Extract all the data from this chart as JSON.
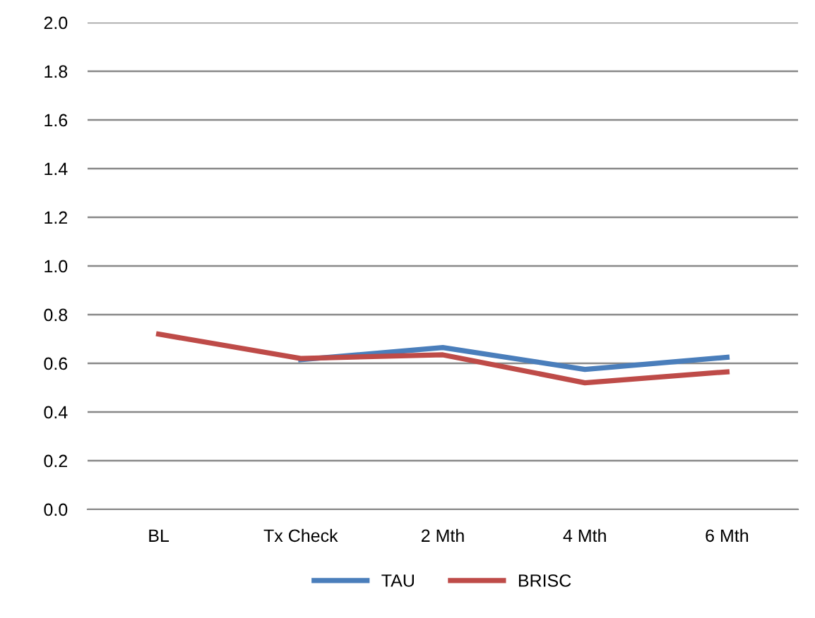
{
  "chart_data": {
    "type": "line",
    "categories": [
      "BL",
      "Tx Check",
      "2 Mth",
      "4 Mth",
      "6 Mth"
    ],
    "series": [
      {
        "name": "TAU",
        "color": "#4a7ebb",
        "values": [
          null,
          0.615,
          0.665,
          0.575,
          0.625
        ]
      },
      {
        "name": "BRISC",
        "color": "#be4b48",
        "values": [
          0.72,
          0.62,
          0.635,
          0.52,
          0.565
        ]
      }
    ],
    "ylim": [
      0,
      2
    ],
    "yticks": [
      {
        "value": 0,
        "label": "0.0"
      },
      {
        "value": 0.2,
        "label": "0.2"
      },
      {
        "value": 0.4,
        "label": "0.4"
      },
      {
        "value": 0.6,
        "label": "0.6"
      },
      {
        "value": 0.8,
        "label": "0.8"
      },
      {
        "value": 1,
        "label": "1.0"
      },
      {
        "value": 1.2,
        "label": "1.2"
      },
      {
        "value": 1.4,
        "label": "1.4"
      },
      {
        "value": 1.6,
        "label": "1.6"
      },
      {
        "value": 1.8,
        "label": "1.8"
      },
      {
        "value": 2,
        "label": "2.0"
      }
    ],
    "grid": "y",
    "legend": "bottom",
    "marker": "none",
    "line_style": "solid"
  }
}
